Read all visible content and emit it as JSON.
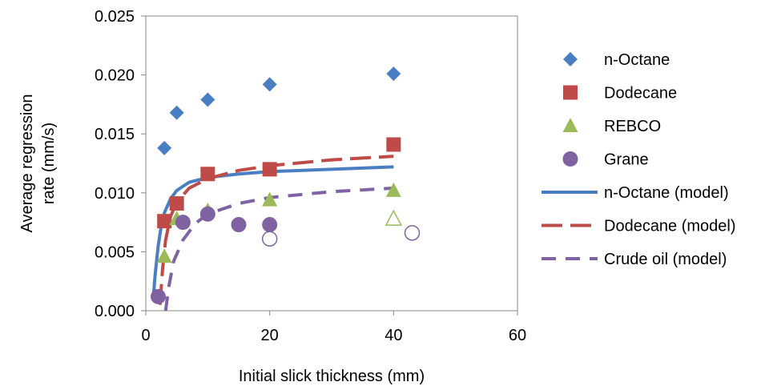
{
  "chart_data": {
    "type": "scatter",
    "xlabel": "Initial slick thickness (mm)",
    "ylabel_lines": [
      "Average regression",
      "rate (mm/s)"
    ],
    "xlim": [
      0,
      60
    ],
    "ylim": [
      0,
      0.025
    ],
    "x_ticks": [
      "0",
      "20",
      "40",
      "60"
    ],
    "y_ticks": [
      "0.000",
      "0.005",
      "0.010",
      "0.015",
      "0.020",
      "0.025"
    ],
    "grid": false,
    "legend_position": "right",
    "series": [
      {
        "name": "n-Octane",
        "kind": "marker",
        "marker": "diamond",
        "color": "#4A7EC2",
        "points": [
          [
            3,
            0.0138
          ],
          [
            5,
            0.0168
          ],
          [
            10,
            0.0179
          ],
          [
            20,
            0.0192
          ],
          [
            40,
            0.0201
          ]
        ]
      },
      {
        "name": "Dodecane",
        "kind": "marker",
        "marker": "square",
        "color": "#BE4B48",
        "points": [
          [
            3,
            0.0076
          ],
          [
            5,
            0.0091
          ],
          [
            10,
            0.0116
          ],
          [
            20,
            0.012
          ],
          [
            40,
            0.0141
          ]
        ]
      },
      {
        "name": "REBCO",
        "kind": "marker",
        "marker": "triangle",
        "color": "#9BBB59",
        "points": [
          [
            3,
            0.0046
          ],
          [
            5,
            0.0078
          ],
          [
            10,
            0.0085
          ],
          [
            20,
            0.0094
          ],
          [
            40,
            0.0102
          ]
        ]
      },
      {
        "name": "Grane",
        "kind": "marker",
        "marker": "circle",
        "color": "#7F62A2",
        "points": [
          [
            2,
            0.0012
          ],
          [
            6,
            0.0075
          ],
          [
            10,
            0.0082
          ],
          [
            15,
            0.0073
          ],
          [
            20,
            0.0073
          ]
        ]
      },
      {
        "name": "",
        "kind": "marker",
        "marker": "triangle-open",
        "color": "#9BBB59",
        "points": [
          [
            40,
            0.0078
          ]
        ]
      },
      {
        "name": "",
        "kind": "marker",
        "marker": "circle-open",
        "color": "#7F62A2",
        "points": [
          [
            20,
            0.0061
          ],
          [
            43,
            0.0066
          ]
        ]
      },
      {
        "name": "n-Octane (model)",
        "kind": "line",
        "dash": "solid",
        "color": "#4A7EC2",
        "points": [
          [
            1.2,
            0.001
          ],
          [
            1.5,
            0.003
          ],
          [
            2,
            0.0055
          ],
          [
            2.5,
            0.0072
          ],
          [
            3,
            0.0083
          ],
          [
            4,
            0.0095
          ],
          [
            5,
            0.0102
          ],
          [
            7,
            0.0109
          ],
          [
            10,
            0.0113
          ],
          [
            15,
            0.0116
          ],
          [
            20,
            0.0118
          ],
          [
            30,
            0.012
          ],
          [
            40,
            0.0122
          ]
        ]
      },
      {
        "name": "Dodecane (model)",
        "kind": "line",
        "dash": "long-dash",
        "color": "#BE4B48",
        "points": [
          [
            2.3,
            0.0005
          ],
          [
            2.7,
            0.0035
          ],
          [
            3.2,
            0.006
          ],
          [
            4,
            0.008
          ],
          [
            5,
            0.0092
          ],
          [
            7,
            0.0104
          ],
          [
            10,
            0.0112
          ],
          [
            15,
            0.0119
          ],
          [
            20,
            0.0123
          ],
          [
            30,
            0.0128
          ],
          [
            40,
            0.0131
          ]
        ]
      },
      {
        "name": "Crude oil (model)",
        "kind": "line",
        "dash": "dash",
        "color": "#7F62A2",
        "points": [
          [
            3.2,
            0.0
          ],
          [
            3.7,
            0.002
          ],
          [
            4.5,
            0.0042
          ],
          [
            6,
            0.006
          ],
          [
            8,
            0.0074
          ],
          [
            10,
            0.0082
          ],
          [
            15,
            0.0091
          ],
          [
            20,
            0.0096
          ],
          [
            30,
            0.0101
          ],
          [
            40,
            0.0104
          ]
        ]
      }
    ]
  }
}
